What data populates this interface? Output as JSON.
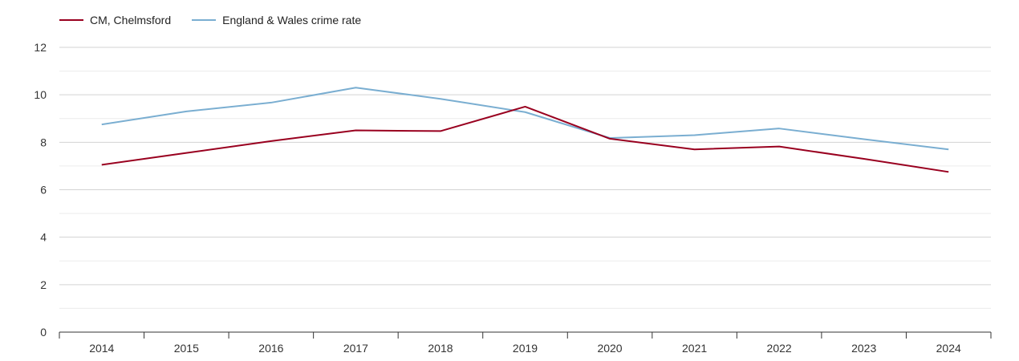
{
  "chart_data": {
    "type": "line",
    "title": "",
    "xlabel": "",
    "ylabel": "",
    "x": [
      "2014",
      "2015",
      "2016",
      "2017",
      "2018",
      "2019",
      "2020",
      "2021",
      "2022",
      "2023",
      "2024"
    ],
    "ylim": [
      0,
      12
    ],
    "yticks": [
      0,
      2,
      4,
      6,
      8,
      10,
      12
    ],
    "grid": true,
    "legend_position": "top-left",
    "series": [
      {
        "name": "CM, Chelmsford",
        "color": "#99001f",
        "values": [
          7.05,
          7.55,
          8.05,
          8.5,
          8.47,
          9.5,
          8.15,
          7.7,
          7.82,
          7.3,
          6.75
        ]
      },
      {
        "name": "England & Wales crime rate",
        "color": "#7aaed1",
        "values": [
          8.75,
          9.3,
          9.67,
          10.3,
          9.83,
          9.27,
          8.18,
          8.3,
          8.58,
          8.13,
          7.7
        ]
      }
    ]
  }
}
